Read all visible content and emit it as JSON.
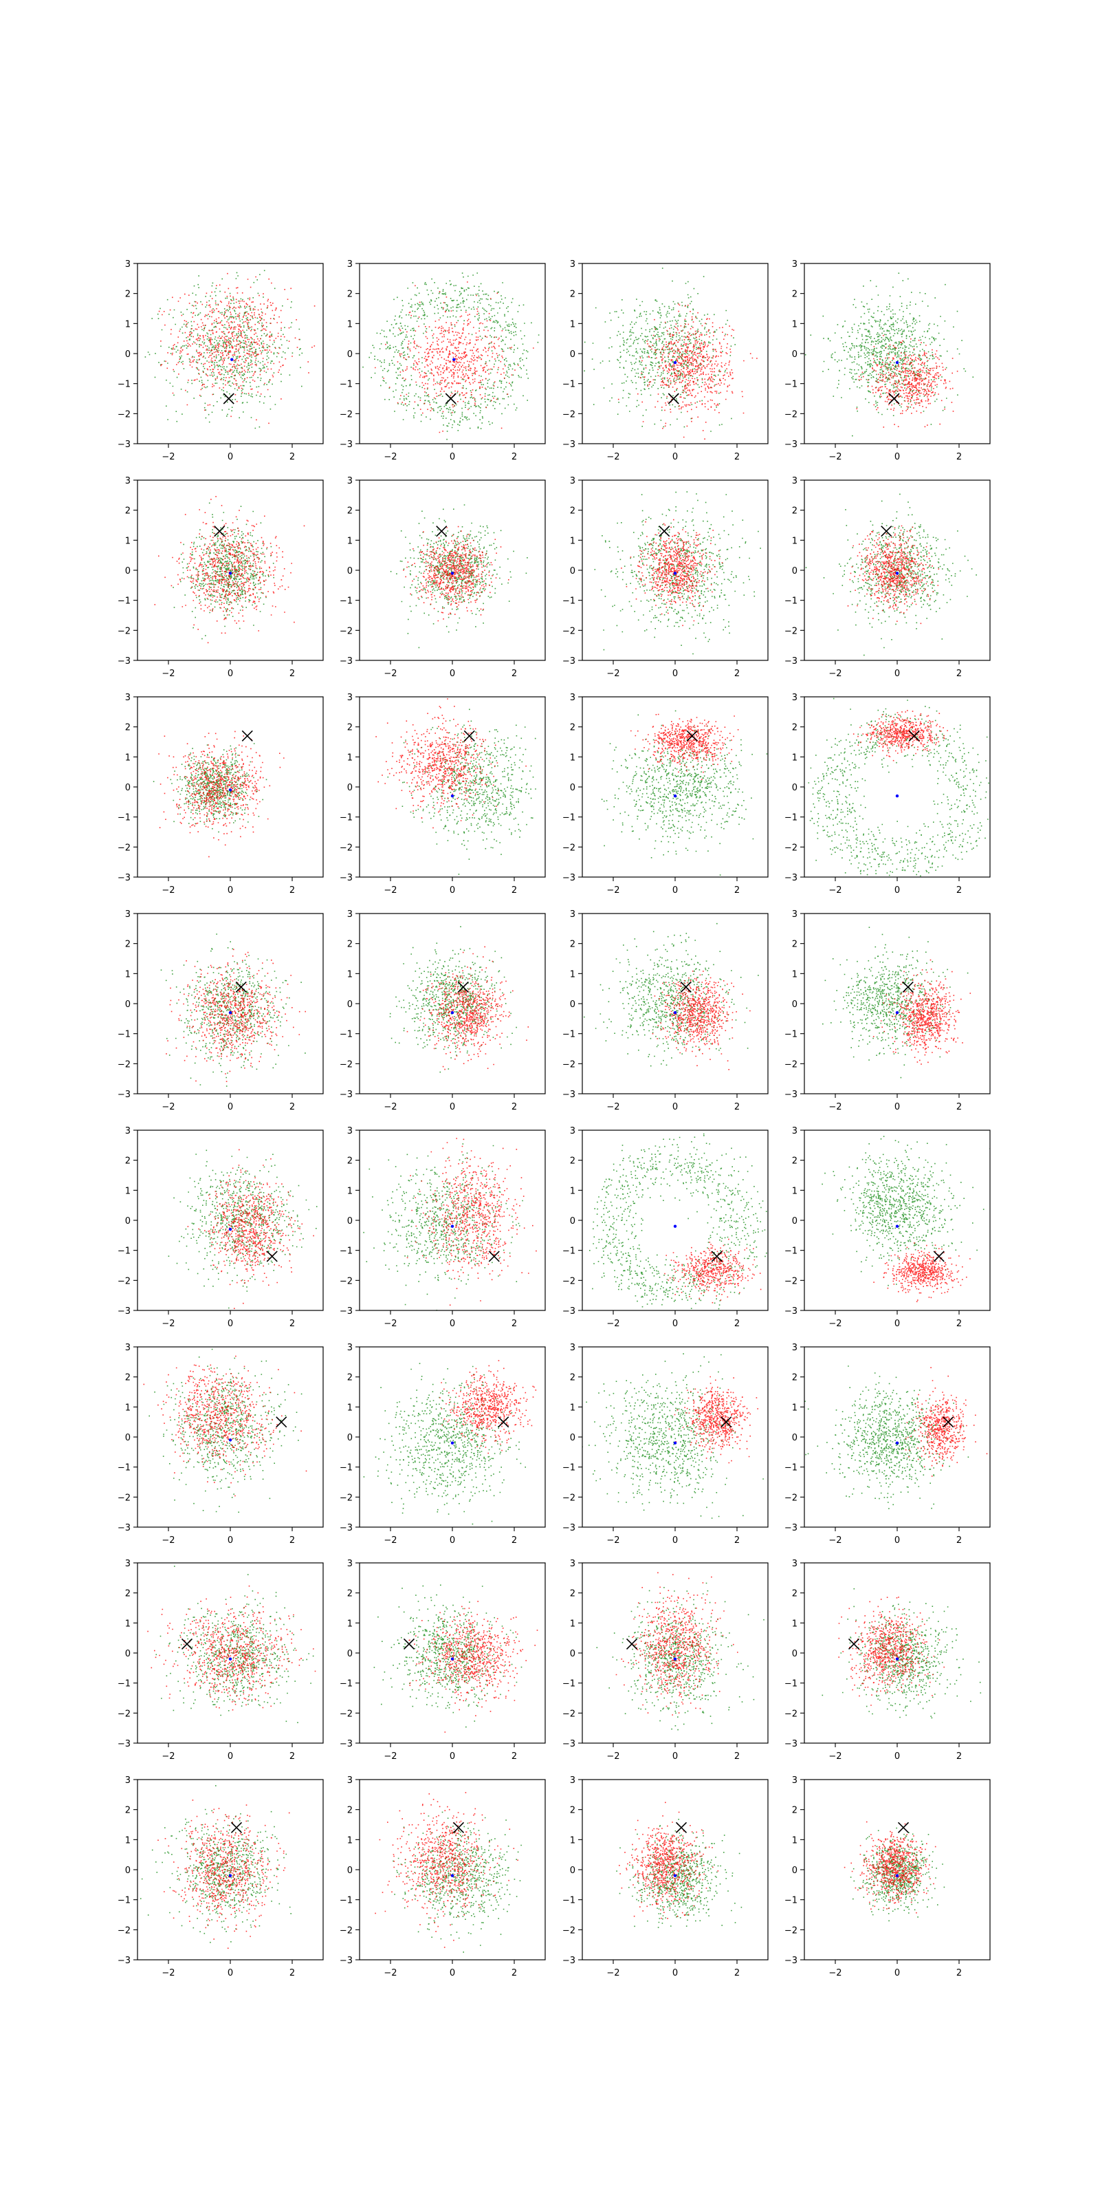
{
  "figure": {
    "background": "#ffffff",
    "rows": 8,
    "cols": 4
  },
  "colors": {
    "red": "#ff0000",
    "green": "#008000",
    "blue": "#0000ff",
    "marker": "#000000",
    "axes": "#000000"
  },
  "chart_data": {
    "type": "scatter",
    "xlim": [
      -3,
      3
    ],
    "ylim": [
      -3,
      3
    ],
    "xticks": [
      -2,
      0,
      2
    ],
    "yticks": [
      -3,
      -2,
      -1,
      0,
      1,
      2,
      3
    ],
    "xtick_labels": [
      "−2",
      "0",
      "2"
    ],
    "ytick_labels": [
      "−3",
      "−2",
      "−1",
      "0",
      "1",
      "2",
      "3"
    ],
    "grid": false,
    "legend": "none",
    "marker_style": "x",
    "panels": [
      {
        "row": 0,
        "col": 0,
        "marker": [
          -0.05,
          -1.5
        ],
        "red": {
          "c": [
            0,
            0.4
          ],
          "s": [
            0.9,
            0.9
          ],
          "w": 0.5
        },
        "green": {
          "c": [
            0,
            0.2
          ],
          "s": [
            1.0,
            1.0
          ],
          "w": 0.5
        },
        "blue": [
          0.05,
          -0.2
        ]
      },
      {
        "row": 0,
        "col": 1,
        "marker": [
          -0.05,
          -1.5
        ],
        "red": {
          "c": [
            0,
            -0.2
          ],
          "s": [
            0.8,
            0.8
          ],
          "w": 0.45
        },
        "green": {
          "ring": true,
          "c": [
            0,
            0
          ],
          "r": 1.9,
          "s": 0.4,
          "w": 0.55
        },
        "blue": [
          0.05,
          -0.2
        ]
      },
      {
        "row": 0,
        "col": 2,
        "marker": [
          -0.05,
          -1.5
        ],
        "red": {
          "c": [
            0.5,
            -0.4
          ],
          "s": [
            0.65,
            0.75
          ],
          "w": 0.5
        },
        "green": {
          "c": [
            -0.3,
            0.1
          ],
          "s": [
            0.9,
            0.9
          ],
          "w": 0.5
        },
        "blue": [
          0.0,
          -0.3
        ]
      },
      {
        "row": 0,
        "col": 3,
        "marker": [
          -0.1,
          -1.5
        ],
        "red": {
          "c": [
            0.35,
            -0.9
          ],
          "s": [
            0.6,
            0.5
          ],
          "w": 0.4
        },
        "green": {
          "c": [
            -0.2,
            0.1
          ],
          "s": [
            0.85,
            0.85
          ],
          "w": 0.6
        },
        "blue": [
          0.0,
          -0.3
        ]
      },
      {
        "row": 1,
        "col": 0,
        "marker": [
          -0.35,
          1.3
        ],
        "red": {
          "c": [
            0,
            0.05
          ],
          "s": [
            0.75,
            0.75
          ],
          "w": 0.5
        },
        "green": {
          "c": [
            -0.1,
            0
          ],
          "s": [
            0.6,
            0.7
          ],
          "w": 0.5
        },
        "blue": [
          0.0,
          -0.1
        ]
      },
      {
        "row": 1,
        "col": 1,
        "marker": [
          -0.35,
          1.3
        ],
        "red": {
          "c": [
            0,
            -0.05
          ],
          "s": [
            0.55,
            0.55
          ],
          "w": 0.5
        },
        "green": {
          "c": [
            0,
            0
          ],
          "s": [
            0.7,
            0.7
          ],
          "w": 0.5
        },
        "blue": [
          0.0,
          -0.1
        ]
      },
      {
        "row": 1,
        "col": 2,
        "marker": [
          -0.35,
          1.3
        ],
        "red": {
          "c": [
            0,
            0.05
          ],
          "s": [
            0.5,
            0.55
          ],
          "w": 0.5
        },
        "green": {
          "c": [
            0.1,
            0
          ],
          "s": [
            0.95,
            0.95
          ],
          "w": 0.5
        },
        "blue": [
          0.0,
          -0.1
        ]
      },
      {
        "row": 1,
        "col": 3,
        "marker": [
          -0.35,
          1.3
        ],
        "red": {
          "c": [
            -0.1,
            0
          ],
          "s": [
            0.5,
            0.55
          ],
          "w": 0.5
        },
        "green": {
          "c": [
            0.1,
            0
          ],
          "s": [
            0.8,
            0.8
          ],
          "w": 0.5
        },
        "blue": [
          0.0,
          -0.1
        ]
      },
      {
        "row": 2,
        "col": 0,
        "marker": [
          0.55,
          1.7
        ],
        "red": {
          "c": [
            -0.4,
            0
          ],
          "s": [
            0.65,
            0.65
          ],
          "w": 0.5
        },
        "green": {
          "c": [
            -0.5,
            0
          ],
          "s": [
            0.55,
            0.55
          ],
          "w": 0.5
        },
        "blue": [
          0.0,
          -0.1
        ]
      },
      {
        "row": 2,
        "col": 1,
        "marker": [
          0.55,
          1.7
        ],
        "red": {
          "c": [
            -0.3,
            0.8
          ],
          "s": [
            0.7,
            0.65
          ],
          "w": 0.5
        },
        "green": {
          "c": [
            0.8,
            0.1
          ],
          "s": [
            0.9,
            0.9
          ],
          "w": 0.5
        },
        "blue": [
          0.0,
          -0.3
        ]
      },
      {
        "row": 2,
        "col": 2,
        "marker": [
          0.55,
          1.7
        ],
        "red": {
          "c": [
            0.4,
            1.5
          ],
          "s": [
            0.6,
            0.35
          ],
          "w": 0.45
        },
        "green": {
          "c": [
            0.1,
            -0.1
          ],
          "s": [
            0.95,
            0.85
          ],
          "w": 0.55
        },
        "blue": [
          0.0,
          -0.3
        ]
      },
      {
        "row": 2,
        "col": 3,
        "marker": [
          0.55,
          1.7
        ],
        "red": {
          "c": [
            0.2,
            1.8
          ],
          "s": [
            0.55,
            0.28
          ],
          "w": 0.4
        },
        "green": {
          "ring": true,
          "c": [
            0,
            -0.3
          ],
          "r": 2.2,
          "s": 0.45,
          "w": 0.6
        },
        "blue": [
          0.0,
          -0.3
        ]
      },
      {
        "row": 3,
        "col": 0,
        "marker": [
          0.35,
          0.55
        ],
        "red": {
          "c": [
            0.1,
            -0.3
          ],
          "s": [
            0.7,
            0.75
          ],
          "w": 0.5
        },
        "green": {
          "c": [
            0,
            -0.2
          ],
          "s": [
            0.75,
            0.8
          ],
          "w": 0.5
        },
        "blue": [
          0.0,
          -0.3
        ]
      },
      {
        "row": 3,
        "col": 1,
        "marker": [
          0.35,
          0.55
        ],
        "red": {
          "c": [
            0.5,
            -0.3
          ],
          "s": [
            0.6,
            0.6
          ],
          "w": 0.5
        },
        "green": {
          "c": [
            0,
            0.1
          ],
          "s": [
            0.75,
            0.75
          ],
          "w": 0.5
        },
        "blue": [
          0.0,
          -0.3
        ]
      },
      {
        "row": 3,
        "col": 2,
        "marker": [
          0.35,
          0.55
        ],
        "red": {
          "c": [
            0.7,
            -0.4
          ],
          "s": [
            0.5,
            0.55
          ],
          "w": 0.5
        },
        "green": {
          "c": [
            -0.1,
            0.1
          ],
          "s": [
            0.85,
            0.85
          ],
          "w": 0.5
        },
        "blue": [
          0.0,
          -0.3
        ]
      },
      {
        "row": 3,
        "col": 3,
        "marker": [
          0.35,
          0.55
        ],
        "red": {
          "c": [
            0.9,
            -0.4
          ],
          "s": [
            0.45,
            0.55
          ],
          "w": 0.5
        },
        "green": {
          "c": [
            -0.2,
            0.1
          ],
          "s": [
            0.75,
            0.75
          ],
          "w": 0.5
        },
        "blue": [
          0.0,
          -0.3
        ]
      },
      {
        "row": 4,
        "col": 0,
        "marker": [
          1.35,
          -1.2
        ],
        "red": {
          "c": [
            0.6,
            -0.2
          ],
          "s": [
            0.6,
            0.8
          ],
          "w": 0.5
        },
        "green": {
          "c": [
            0.3,
            0
          ],
          "s": [
            0.85,
            0.85
          ],
          "w": 0.5
        },
        "blue": [
          0.0,
          -0.3
        ]
      },
      {
        "row": 4,
        "col": 1,
        "marker": [
          1.35,
          -1.2
        ],
        "red": {
          "c": [
            0.6,
            0.2
          ],
          "s": [
            0.7,
            0.95
          ],
          "w": 0.5
        },
        "green": {
          "c": [
            -0.3,
            -0.1
          ],
          "s": [
            0.95,
            0.95
          ],
          "w": 0.5
        },
        "blue": [
          0.0,
          -0.2
        ]
      },
      {
        "row": 4,
        "col": 2,
        "marker": [
          1.35,
          -1.2
        ],
        "red": {
          "c": [
            1.2,
            -1.6
          ],
          "s": [
            0.55,
            0.35
          ],
          "w": 0.35
        },
        "green": {
          "ring": true,
          "c": [
            0,
            -0.2
          ],
          "r": 2.1,
          "s": 0.45,
          "w": 0.65
        },
        "blue": [
          0.0,
          -0.2
        ]
      },
      {
        "row": 4,
        "col": 3,
        "marker": [
          1.35,
          -1.2
        ],
        "red": {
          "c": [
            0.8,
            -1.7
          ],
          "s": [
            0.5,
            0.3
          ],
          "w": 0.4
        },
        "green": {
          "c": [
            0,
            0.5
          ],
          "s": [
            0.8,
            0.8
          ],
          "w": 0.6
        },
        "blue": [
          0.0,
          -0.2
        ]
      },
      {
        "row": 5,
        "col": 0,
        "marker": [
          1.65,
          0.5
        ],
        "red": {
          "c": [
            -0.4,
            0.7
          ],
          "s": [
            0.8,
            0.8
          ],
          "w": 0.5
        },
        "green": {
          "c": [
            -0.2,
            0.3
          ],
          "s": [
            0.85,
            0.95
          ],
          "w": 0.5
        },
        "blue": [
          0.0,
          -0.1
        ]
      },
      {
        "row": 5,
        "col": 1,
        "marker": [
          1.65,
          0.5
        ],
        "red": {
          "c": [
            1.1,
            1.0
          ],
          "s": [
            0.55,
            0.5
          ],
          "w": 0.45
        },
        "green": {
          "c": [
            -0.1,
            -0.2
          ],
          "s": [
            0.95,
            0.95
          ],
          "w": 0.55
        },
        "blue": [
          0.0,
          -0.2
        ]
      },
      {
        "row": 5,
        "col": 2,
        "marker": [
          1.65,
          0.5
        ],
        "red": {
          "c": [
            1.3,
            0.6
          ],
          "s": [
            0.45,
            0.5
          ],
          "w": 0.45
        },
        "green": {
          "c": [
            -0.3,
            0
          ],
          "s": [
            0.95,
            0.95
          ],
          "w": 0.55
        },
        "blue": [
          0.0,
          -0.2
        ]
      },
      {
        "row": 5,
        "col": 3,
        "marker": [
          1.65,
          0.5
        ],
        "red": {
          "c": [
            1.4,
            0.3
          ],
          "s": [
            0.4,
            0.5
          ],
          "w": 0.4
        },
        "green": {
          "c": [
            -0.3,
            -0.1
          ],
          "s": [
            0.8,
            0.8
          ],
          "w": 0.6
        },
        "blue": [
          0.0,
          -0.2
        ]
      },
      {
        "row": 6,
        "col": 0,
        "marker": [
          -1.4,
          0.3
        ],
        "red": {
          "c": [
            0.1,
            0
          ],
          "s": [
            0.9,
            0.7
          ],
          "w": 0.5
        },
        "green": {
          "c": [
            0.1,
            -0.1
          ],
          "s": [
            0.9,
            0.8
          ],
          "w": 0.5
        },
        "blue": [
          0.0,
          -0.2
        ]
      },
      {
        "row": 6,
        "col": 1,
        "marker": [
          -1.4,
          0.3
        ],
        "red": {
          "c": [
            0.6,
            -0.1
          ],
          "s": [
            0.7,
            0.65
          ],
          "w": 0.5
        },
        "green": {
          "c": [
            -0.1,
            0
          ],
          "s": [
            0.8,
            0.8
          ],
          "w": 0.5
        },
        "blue": [
          0.0,
          -0.2
        ]
      },
      {
        "row": 6,
        "col": 2,
        "marker": [
          -1.4,
          0.3
        ],
        "red": {
          "c": [
            0,
            0.2
          ],
          "s": [
            0.6,
            0.8
          ],
          "w": 0.5
        },
        "green": {
          "c": [
            0,
            -0.2
          ],
          "s": [
            0.8,
            0.85
          ],
          "w": 0.5
        },
        "blue": [
          0.0,
          -0.2
        ]
      },
      {
        "row": 6,
        "col": 3,
        "marker": [
          -1.4,
          0.3
        ],
        "red": {
          "c": [
            -0.3,
            0.1
          ],
          "s": [
            0.55,
            0.6
          ],
          "w": 0.5
        },
        "green": {
          "c": [
            0.2,
            -0.2
          ],
          "s": [
            0.75,
            0.75
          ],
          "w": 0.5
        },
        "blue": [
          0.0,
          -0.2
        ]
      },
      {
        "row": 7,
        "col": 0,
        "marker": [
          0.2,
          1.4
        ],
        "red": {
          "c": [
            -0.2,
            0
          ],
          "s": [
            0.7,
            0.8
          ],
          "w": 0.5
        },
        "green": {
          "c": [
            -0.2,
            0
          ],
          "s": [
            0.75,
            0.8
          ],
          "w": 0.5
        },
        "blue": [
          0.0,
          -0.2
        ]
      },
      {
        "row": 7,
        "col": 1,
        "marker": [
          0.2,
          1.4
        ],
        "red": {
          "c": [
            -0.3,
            0.3
          ],
          "s": [
            0.75,
            0.8
          ],
          "w": 0.5
        },
        "green": {
          "c": [
            0.2,
            -0.2
          ],
          "s": [
            0.8,
            0.75
          ],
          "w": 0.5
        },
        "blue": [
          0.0,
          -0.2
        ]
      },
      {
        "row": 7,
        "col": 2,
        "marker": [
          0.2,
          1.4
        ],
        "red": {
          "c": [
            -0.3,
            0.2
          ],
          "s": [
            0.55,
            0.65
          ],
          "w": 0.5
        },
        "green": {
          "c": [
            0.1,
            -0.3
          ],
          "s": [
            0.65,
            0.65
          ],
          "w": 0.5
        },
        "blue": [
          0.0,
          -0.2
        ]
      },
      {
        "row": 7,
        "col": 3,
        "marker": [
          0.2,
          1.4
        ],
        "red": {
          "c": [
            -0.1,
            0.1
          ],
          "s": [
            0.45,
            0.5
          ],
          "w": 0.5
        },
        "green": {
          "c": [
            0,
            -0.1
          ],
          "s": [
            0.5,
            0.55
          ],
          "w": 0.5
        },
        "blue": [
          0.0,
          -0.2
        ]
      }
    ]
  }
}
